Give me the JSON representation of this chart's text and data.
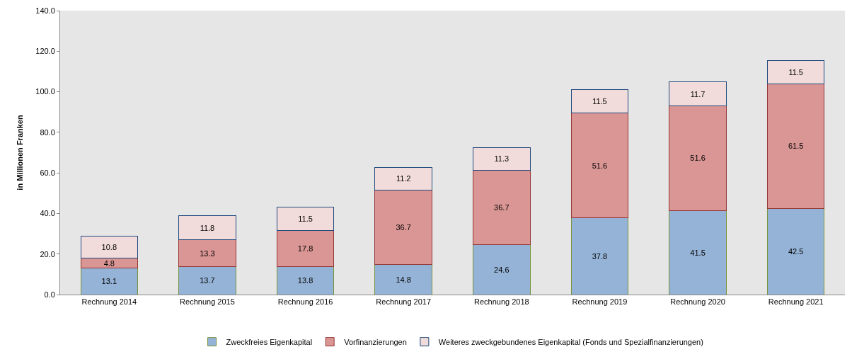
{
  "chart_data": {
    "type": "bar",
    "stacked": true,
    "ylabel": "in Millionen Franken",
    "categories": [
      "Rechnung 2014",
      "Rechnung 2015",
      "Rechnung 2016",
      "Rechnung 2017",
      "Rechnung 2018",
      "Rechnung 2019",
      "Rechnung 2020",
      "Rechnung 2021"
    ],
    "series": [
      {
        "name": "Zweckfreies Eigenkapital",
        "color": "#95b3d7",
        "values": [
          13.1,
          13.7,
          13.8,
          14.8,
          24.6,
          37.8,
          41.5,
          42.5
        ]
      },
      {
        "name": "Vorfinanzierungen",
        "color": "#da9694",
        "values": [
          4.8,
          13.3,
          17.8,
          36.7,
          36.7,
          51.6,
          51.6,
          61.5
        ]
      },
      {
        "name": "Weiteres zweckgebundenes Eigenkapital (Fonds und Spezialfinanzierungen)",
        "color": "#f2dcdb",
        "values": [
          10.8,
          11.8,
          11.5,
          11.2,
          11.3,
          11.5,
          11.7,
          11.5
        ]
      }
    ],
    "ylim": [
      0,
      140
    ],
    "yticks": [
      {
        "value": 0,
        "label": "0.0"
      },
      {
        "value": 20,
        "label": "20.0"
      },
      {
        "value": 40,
        "label": "40.0"
      },
      {
        "value": 60,
        "label": "60.0"
      },
      {
        "value": 80,
        "label": "80.0"
      },
      {
        "value": 100,
        "label": "100.0"
      },
      {
        "value": 120,
        "label": "120.0"
      },
      {
        "value": 140,
        "label": "140.0"
      }
    ],
    "data_labels": true,
    "grid": false,
    "legend": "bottom"
  }
}
